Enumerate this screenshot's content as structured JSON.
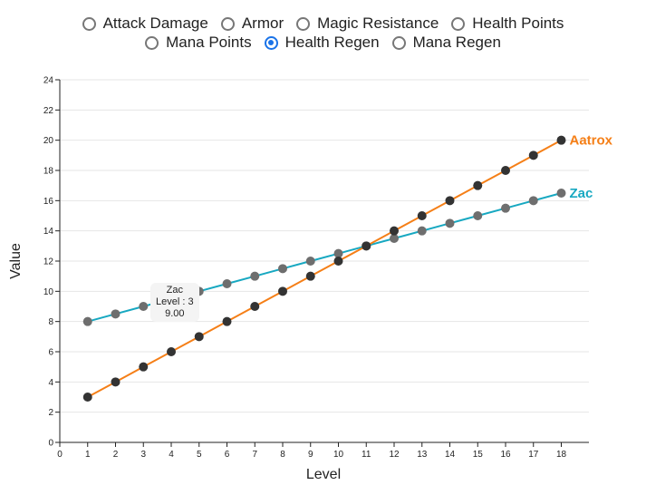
{
  "stat_options": [
    {
      "label": "Attack Damage",
      "selected": false
    },
    {
      "label": "Armor",
      "selected": false
    },
    {
      "label": "Magic Resistance",
      "selected": false
    },
    {
      "label": "Health Points",
      "selected": false
    },
    {
      "label": "Mana Points",
      "selected": false
    },
    {
      "label": "Health Regen",
      "selected": true
    },
    {
      "label": "Mana Regen",
      "selected": false
    }
  ],
  "tooltip": {
    "name": "Zac",
    "level_text": "Level : 3",
    "value_text": "9.00"
  },
  "colors": {
    "accent": "#1a73e8",
    "aatrox": "#f57f17",
    "zac": "#17a8c1",
    "aatrox_point": "#333333",
    "zac_point": "#6e6e6e",
    "grid": "#e6e6e6"
  },
  "chart_data": {
    "type": "line",
    "xlabel": "Level",
    "ylabel": "Value",
    "xlim": [
      0,
      18
    ],
    "ylim": [
      0,
      24
    ],
    "x_ticks": [
      0,
      1,
      2,
      3,
      4,
      5,
      6,
      7,
      8,
      9,
      10,
      11,
      12,
      13,
      14,
      15,
      16,
      17,
      18
    ],
    "y_ticks": [
      0,
      2,
      4,
      6,
      8,
      10,
      12,
      14,
      16,
      18,
      20,
      22,
      24
    ],
    "grid": "horizontal",
    "x": [
      1,
      2,
      3,
      4,
      5,
      6,
      7,
      8,
      9,
      10,
      11,
      12,
      13,
      14,
      15,
      16,
      17,
      18
    ],
    "series": [
      {
        "name": "Aatrox",
        "values": [
          3,
          4,
          5,
          6,
          7,
          8,
          9,
          10,
          11,
          12,
          13,
          14,
          15,
          16,
          17,
          18,
          19,
          20
        ]
      },
      {
        "name": "Zac",
        "values": [
          8,
          8.5,
          9,
          9.5,
          10,
          10.5,
          11,
          11.5,
          12,
          12.5,
          13,
          13.5,
          14,
          14.5,
          15,
          15.5,
          16,
          16.5
        ]
      }
    ]
  }
}
